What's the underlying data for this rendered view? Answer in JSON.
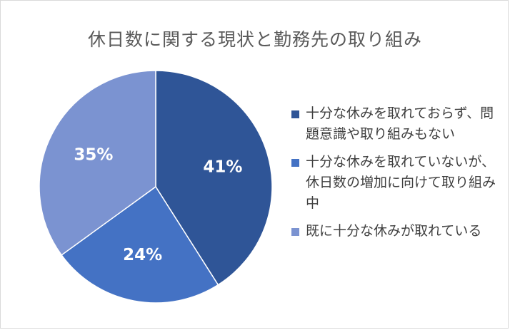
{
  "chart_data": {
    "type": "pie",
    "title": "休日数に関する現状と勤務先の取り組み",
    "categories": [
      "十分な休みを取れておらず、問題意識や取り組みもない",
      "十分な休みを取れていないが、休日数の増加に向けて取り組み中",
      "既に十分な休みが取れている"
    ],
    "values": [
      41,
      24,
      35
    ],
    "data_labels": [
      "41%",
      "24%",
      "35%"
    ],
    "colors": [
      "#2f5597",
      "#4472c4",
      "#7b93d1"
    ],
    "legend_position": "right"
  }
}
